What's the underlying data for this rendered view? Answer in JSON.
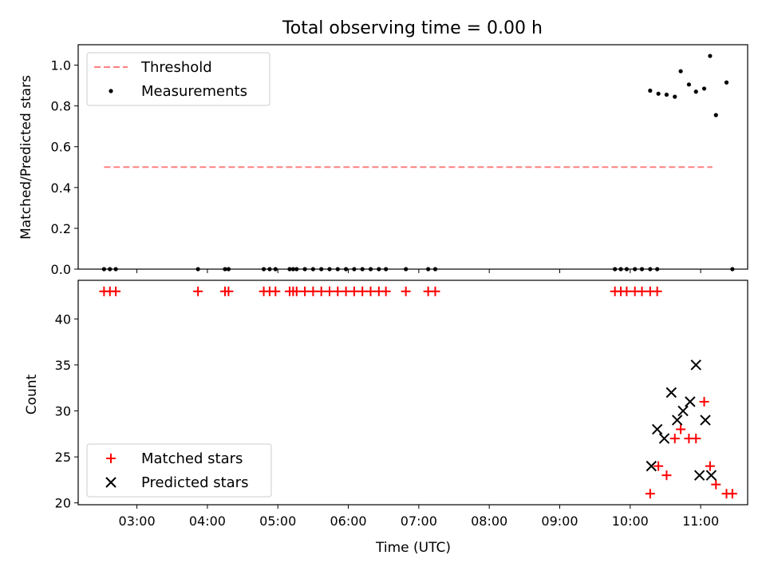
{
  "figure": {
    "title": "Total observing time = 0.00 h"
  },
  "chart_data": [
    {
      "type": "scatter",
      "ylabel": "Matched/Predicted stars",
      "xlim": [
        "02:10",
        "11:40"
      ],
      "ylim": [
        0,
        1.1
      ],
      "yticks": [
        0.0,
        0.2,
        0.4,
        0.6,
        0.8,
        1.0
      ],
      "ytick_labels": [
        "0.0",
        "0.2",
        "0.4",
        "0.6",
        "0.8",
        "1.0"
      ],
      "legend": {
        "placement": "top-left",
        "entries": [
          "Threshold",
          "Measurements"
        ]
      },
      "threshold": {
        "name": "Threshold",
        "value": 0.5,
        "x_range": [
          "02:32",
          "11:10"
        ],
        "color": "#ff8080",
        "style": "dashed"
      },
      "series": [
        {
          "name": "Measurements",
          "color": "#000000",
          "marker": "dot",
          "x": [
            "02:32",
            "02:37",
            "02:42",
            "03:52",
            "04:15",
            "04:18",
            "04:48",
            "04:53",
            "04:58",
            "05:10",
            "05:13",
            "05:16",
            "05:23",
            "05:30",
            "05:37",
            "05:44",
            "05:51",
            "05:58",
            "06:05",
            "06:12",
            "06:19",
            "06:26",
            "06:32",
            "06:49",
            "07:08",
            "07:14",
            "09:47",
            "09:52",
            "09:57",
            "10:04",
            "10:10",
            "10:17",
            "10:23",
            "10:17",
            "10:24",
            "10:31",
            "10:38",
            "10:43",
            "10:50",
            "10:56",
            "11:03",
            "11:08",
            "11:13",
            "11:22",
            "11:27"
          ],
          "y": [
            0,
            0,
            0,
            0,
            0,
            0,
            0,
            0,
            0,
            0,
            0,
            0,
            0,
            0,
            0,
            0,
            0,
            0,
            0,
            0,
            0,
            0,
            0,
            0,
            0,
            0,
            0,
            0,
            0,
            0,
            0,
            0,
            0,
            0.875,
            0.86,
            0.855,
            0.845,
            0.97,
            0.905,
            0.87,
            0.885,
            1.045,
            0.755,
            0.915,
            0
          ]
        }
      ]
    },
    {
      "type": "scatter",
      "xlabel": "Time (UTC)",
      "ylabel": "Count",
      "xlim": [
        "02:10",
        "11:40"
      ],
      "ylim": [
        19.8,
        44.2
      ],
      "xtick_labels": [
        "03:00",
        "04:00",
        "05:00",
        "06:00",
        "07:00",
        "08:00",
        "09:00",
        "10:00",
        "11:00"
      ],
      "yticks": [
        20,
        25,
        30,
        35,
        40
      ],
      "ytick_labels": [
        "20",
        "25",
        "30",
        "35",
        "40"
      ],
      "legend": {
        "placement": "bottom-left",
        "entries": [
          "Matched stars",
          "Predicted stars"
        ]
      },
      "series": [
        {
          "name": "Matched stars",
          "color": "#ff0000",
          "marker": "plus",
          "x": [
            "02:32",
            "02:37",
            "02:42",
            "03:52",
            "04:15",
            "04:18",
            "04:48",
            "04:53",
            "04:58",
            "05:10",
            "05:13",
            "05:16",
            "05:23",
            "05:30",
            "05:37",
            "05:44",
            "05:51",
            "05:58",
            "06:05",
            "06:12",
            "06:19",
            "06:26",
            "06:32",
            "06:49",
            "07:08",
            "07:14",
            "09:47",
            "09:52",
            "09:57",
            "10:04",
            "10:10",
            "10:17",
            "10:23",
            "10:17",
            "10:24",
            "10:31",
            "10:38",
            "10:43",
            "10:50",
            "10:56",
            "11:03",
            "11:08",
            "11:13",
            "11:22",
            "11:27"
          ],
          "y": [
            43,
            43,
            43,
            43,
            43,
            43,
            43,
            43,
            43,
            43,
            43,
            43,
            43,
            43,
            43,
            43,
            43,
            43,
            43,
            43,
            43,
            43,
            43,
            43,
            43,
            43,
            43,
            43,
            43,
            43,
            43,
            43,
            43,
            21,
            24,
            23,
            27,
            28,
            27,
            27,
            31,
            24,
            22,
            21,
            21
          ]
        },
        {
          "name": "Predicted stars",
          "color": "#000000",
          "marker": "x",
          "x": [
            "10:18",
            "10:23",
            "10:29",
            "10:35",
            "10:40",
            "10:45",
            "10:51",
            "10:56",
            "10:59",
            "11:04",
            "11:09"
          ],
          "y": [
            24,
            28,
            27,
            32,
            29,
            30,
            31,
            35,
            23,
            29,
            23
          ]
        }
      ]
    }
  ]
}
